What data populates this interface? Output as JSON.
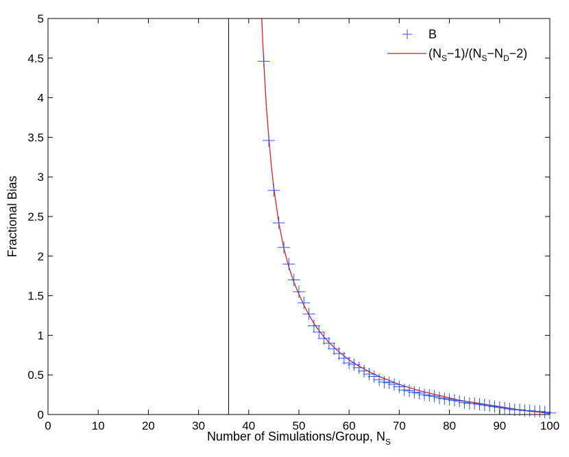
{
  "chart_data": {
    "type": "line",
    "xlabel": {
      "text": "Number of Simulations/Group, N",
      "sub": "S"
    },
    "ylabel": "Fractional Bias",
    "xlim": [
      0,
      100
    ],
    "ylim": [
      0,
      5
    ],
    "xticks": [
      0,
      10,
      20,
      30,
      40,
      50,
      60,
      70,
      80,
      90,
      100
    ],
    "yticks": [
      0,
      0.5,
      1,
      1.5,
      2,
      2.5,
      3,
      3.5,
      4,
      4.5,
      5
    ],
    "grid": false,
    "vertical_line_x": 36,
    "legend": {
      "position": "top-right",
      "entries": [
        {
          "name": "B",
          "marker": "+",
          "color": "#3050d8"
        },
        {
          "name": "(N_S−1)/(N_S−N_D−2)",
          "marker": "line",
          "color": "#d02020"
        }
      ]
    },
    "series": [
      {
        "name": "B",
        "kind": "scatter",
        "marker": "+",
        "color": "#3050d8",
        "x": [
          43,
          44,
          45,
          46,
          47,
          48,
          49,
          50,
          51,
          52,
          53,
          54,
          55,
          56,
          57,
          58,
          59,
          60,
          61,
          62,
          63,
          64,
          65,
          66,
          67,
          68,
          69,
          70,
          71,
          72,
          73,
          74,
          75,
          76,
          77,
          78,
          79,
          80,
          81,
          82,
          83,
          84,
          85,
          86,
          87,
          88,
          89,
          90,
          91,
          92,
          93,
          94,
          95,
          96,
          97,
          98,
          99,
          100
        ],
        "y": [
          4.46,
          3.46,
          2.83,
          2.42,
          2.11,
          1.9,
          1.7,
          1.55,
          1.41,
          1.27,
          1.12,
          1.04,
          0.96,
          0.9,
          0.83,
          0.77,
          0.71,
          0.65,
          0.63,
          0.59,
          0.55,
          0.51,
          0.48,
          0.44,
          0.41,
          0.4,
          0.38,
          0.35,
          0.31,
          0.3,
          0.28,
          0.27,
          0.25,
          0.24,
          0.23,
          0.21,
          0.2,
          0.19,
          0.18,
          0.17,
          0.15,
          0.14,
          0.14,
          0.13,
          0.12,
          0.11,
          0.1,
          0.09,
          0.08,
          0.07,
          0.06,
          0.06,
          0.05,
          0.05,
          0.04,
          0.04,
          0.03,
          0.02
        ]
      },
      {
        "name": "(N_S−1)/(N_S−N_D−2)",
        "kind": "line",
        "color": "#d02020",
        "x": [
          42.6,
          42.8,
          43,
          43.5,
          44,
          44.5,
          45,
          46,
          47,
          48,
          49,
          50,
          51,
          52,
          53,
          54,
          55,
          56,
          57,
          58,
          59,
          60,
          62,
          64,
          66,
          68,
          70,
          72,
          74,
          76,
          78,
          80,
          82,
          84,
          86,
          88,
          90,
          92,
          94,
          96,
          98,
          100
        ],
        "y": [
          5.0,
          4.7,
          4.45,
          3.9,
          3.5,
          3.15,
          2.86,
          2.42,
          2.1,
          1.86,
          1.67,
          1.52,
          1.38,
          1.26,
          1.15,
          1.06,
          0.98,
          0.91,
          0.85,
          0.79,
          0.74,
          0.69,
          0.61,
          0.54,
          0.48,
          0.43,
          0.38,
          0.34,
          0.3,
          0.27,
          0.24,
          0.21,
          0.18,
          0.16,
          0.14,
          0.12,
          0.1,
          0.08,
          0.06,
          0.04,
          0.03,
          0.01
        ]
      }
    ]
  }
}
